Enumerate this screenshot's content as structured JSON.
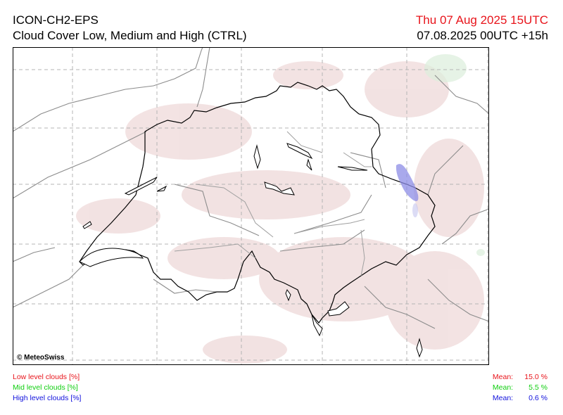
{
  "header": {
    "model": "ICON-CH2-EPS",
    "product": "Cloud Cover Low, Medium and High (CTRL)",
    "valid_time": "Thu 07 Aug 2025 15UTC",
    "run_time": "07.08.2025 00UTC +15h"
  },
  "map": {
    "credit": "© MeteoSwiss",
    "colors": {
      "low": "#e8141b",
      "mid": "#0fce0f",
      "high": "#1111dd",
      "high_fill": "#8c8ce6"
    }
  },
  "legend": {
    "low": {
      "label": "Low level clouds [%]",
      "mean_label": "Mean:",
      "mean_value": "15.0 %"
    },
    "mid": {
      "label": "Mid level clouds [%]",
      "mean_label": "Mean:",
      "mean_value": "5.5 %"
    },
    "high": {
      "label": "High level clouds [%]",
      "mean_label": "Mean:",
      "mean_value": "0.6 %"
    }
  }
}
